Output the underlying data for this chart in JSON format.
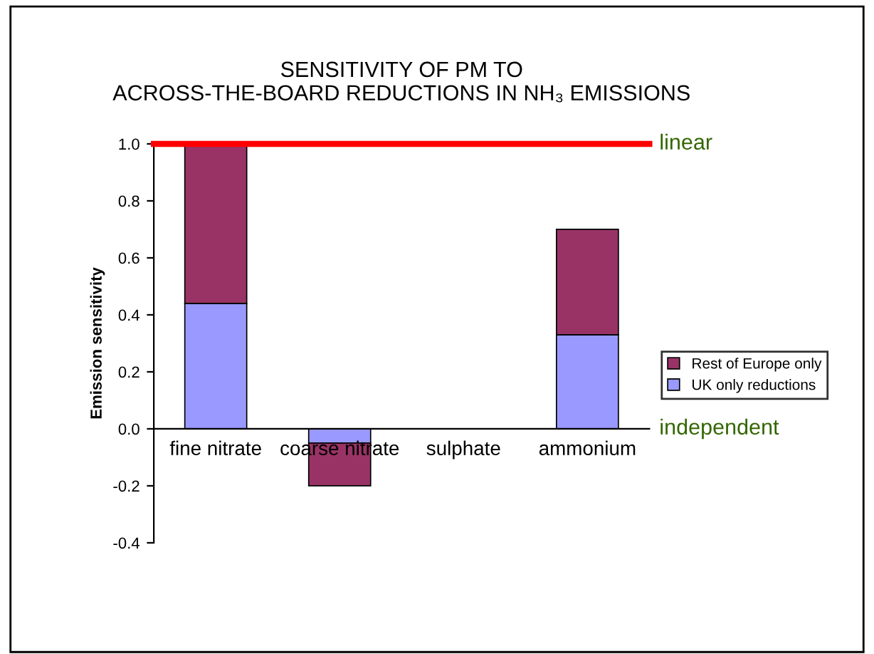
{
  "chart_data": {
    "type": "bar",
    "title": "SENSITIVITY OF PM TO\nACROSS-THE-BOARD REDUCTIONS IN NH₃ EMISSIONS",
    "ylabel": "Emission sensitivity",
    "categories": [
      "fine nitrate",
      "coarse nitrate",
      "sulphate",
      "ammonium"
    ],
    "stacked": true,
    "series": [
      {
        "name": "UK only reductions",
        "color": "#9999ff",
        "values": [
          0.44,
          -0.05,
          0,
          0.33
        ]
      },
      {
        "name": "Rest of Europe only",
        "color": "#993366",
        "values": [
          0.56,
          -0.15,
          0,
          0.37
        ]
      }
    ],
    "ylim": [
      -0.4,
      1.0
    ],
    "yticks": [
      {
        "value": -0.4,
        "label": "-0.4"
      },
      {
        "value": -0.2,
        "label": "-0.2"
      },
      {
        "value": 0,
        "label": "0.0"
      },
      {
        "value": 0.2,
        "label": "0.2"
      },
      {
        "value": 0.4,
        "label": "0.4"
      },
      {
        "value": 0.6,
        "label": "0.6"
      },
      {
        "value": 0.8,
        "label": "0.8"
      },
      {
        "value": 1.0,
        "label": "1.0"
      }
    ],
    "ref_lines": [
      {
        "axis": "y",
        "value": 1.0,
        "label": "linear",
        "color": "#ff0000"
      }
    ],
    "annotations": [
      "independent"
    ],
    "grid": false,
    "legend": "right"
  }
}
